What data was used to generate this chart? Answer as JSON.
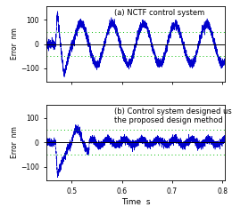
{
  "title_a": "(a) NCTF control system",
  "title_b": "(b) Control system designed using\nthe proposed design method",
  "xlabel": "Time  s",
  "ylabel": "Error  nm",
  "xlim": [
    0.45,
    0.805
  ],
  "ylim_a": [
    -155,
    155
  ],
  "ylim_b": [
    -155,
    155
  ],
  "yticks": [
    -100,
    0,
    100
  ],
  "xticks": [
    0.5,
    0.6,
    0.7,
    0.8
  ],
  "xtick_labels": [
    "0.5",
    "0.6",
    "0.7",
    "0.8"
  ],
  "hline_color": "#00bb00",
  "hline_y": [
    50,
    -50
  ],
  "line_color": "#0000cc",
  "bg_color": "#ffffff",
  "seed": 12,
  "n_points": 3500,
  "figsize": [
    2.6,
    2.33
  ],
  "dpi": 100
}
